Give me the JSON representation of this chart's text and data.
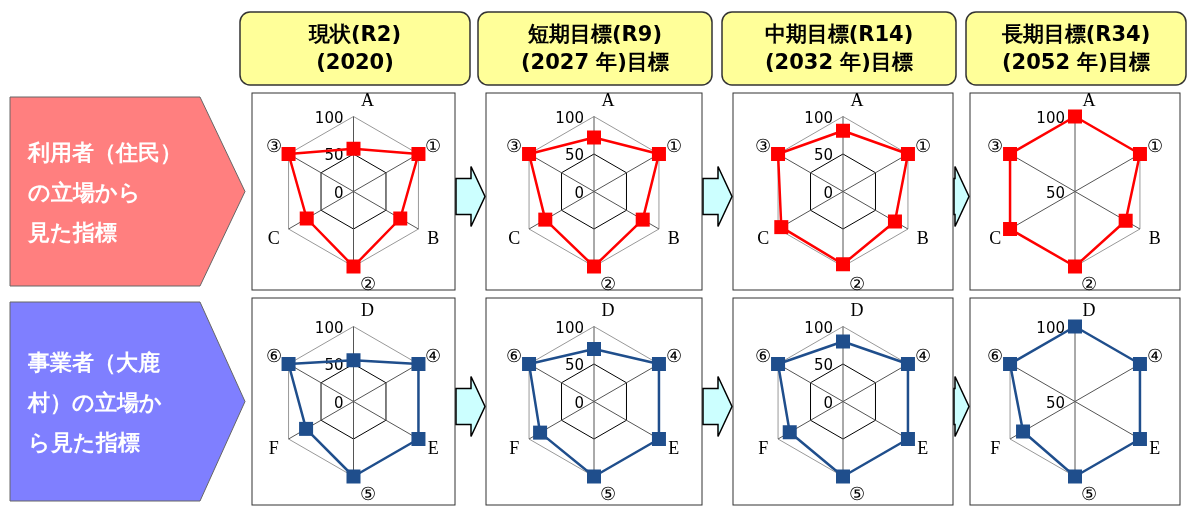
{
  "chart_data": [
    {
      "type": "other",
      "annotations": [
        "利用者（住民）",
        "の立場から",
        "見た指標"
      ],
      "color": "#ff7f7f"
    },
    {
      "type": "radar",
      "title": "現状(R2)\n(2020)",
      "categories": [
        "A",
        "①",
        "B",
        "②",
        "C",
        "③"
      ],
      "series": [
        {
          "color": "#ff0000",
          "values": [
            57,
            100,
            72,
            100,
            72,
            100
          ]
        }
      ],
      "ylim": [
        0,
        100
      ],
      "yticks": [
        0,
        50,
        100
      ],
      "marker": "square"
    },
    {
      "type": "radar",
      "title": "短期目標(R9)\n(2027 年)目標",
      "categories": [
        "A",
        "①",
        "B",
        "②",
        "C",
        "③"
      ],
      "series": [
        {
          "color": "#ff0000",
          "values": [
            72,
            100,
            75,
            100,
            75,
            100
          ]
        }
      ],
      "ylim": [
        0,
        100
      ],
      "yticks": [
        0,
        50,
        100
      ],
      "marker": "square"
    },
    {
      "type": "radar",
      "title": "中期目標(R14)\n(2032 年)目標",
      "categories": [
        "A",
        "①",
        "B",
        "②",
        "C",
        "③"
      ],
      "series": [
        {
          "color": "#ff0000",
          "values": [
            81,
            100,
            80,
            97,
            95,
            100
          ]
        }
      ],
      "ylim": [
        0,
        100
      ],
      "yticks": [
        0,
        50,
        100
      ],
      "marker": "square"
    },
    {
      "type": "radar",
      "title": "長期目標(R34)\n(2052 年)目標",
      "categories": [
        "A",
        "①",
        "B",
        "②",
        "C",
        "③"
      ],
      "series": [
        {
          "color": "#ff0000",
          "values": [
            100,
            100,
            89,
            100,
            100,
            100
          ]
        }
      ],
      "ylim": [
        50,
        100
      ],
      "yticks": [
        50,
        100
      ],
      "marker": "square"
    },
    {
      "type": "other",
      "annotations": [
        "事業者（大鹿",
        "村）の立場か",
        "ら見た指標"
      ],
      "color": "#7f7fff"
    },
    {
      "type": "radar",
      "categories": [
        "D",
        "④",
        "E",
        "⑤",
        "F",
        "⑥"
      ],
      "series": [
        {
          "color": "#1f4e8c",
          "values": [
            55,
            100,
            100,
            100,
            73,
            100
          ]
        }
      ],
      "ylim": [
        0,
        100
      ],
      "yticks": [
        0,
        50,
        100
      ],
      "marker": "square"
    },
    {
      "type": "radar",
      "categories": [
        "D",
        "④",
        "E",
        "⑤",
        "F",
        "⑥"
      ],
      "series": [
        {
          "color": "#1f4e8c",
          "values": [
            70,
            100,
            100,
            100,
            83,
            100
          ]
        }
      ],
      "ylim": [
        0,
        100
      ],
      "yticks": [
        0,
        50,
        100
      ],
      "marker": "square"
    },
    {
      "type": "radar",
      "categories": [
        "D",
        "④",
        "E",
        "⑤",
        "F",
        "⑥"
      ],
      "series": [
        {
          "color": "#1f4e8c",
          "values": [
            80,
            100,
            100,
            100,
            82,
            100
          ]
        }
      ],
      "ylim": [
        0,
        100
      ],
      "yticks": [
        0,
        50,
        100
      ],
      "marker": "square"
    },
    {
      "type": "radar",
      "categories": [
        "D",
        "④",
        "E",
        "⑤",
        "F",
        "⑥"
      ],
      "series": [
        {
          "color": "#1f4e8c",
          "values": [
            100,
            100,
            100,
            100,
            90,
            100
          ]
        }
      ],
      "ylim": [
        50,
        100
      ],
      "yticks": [
        50,
        100
      ],
      "marker": "square"
    }
  ]
}
